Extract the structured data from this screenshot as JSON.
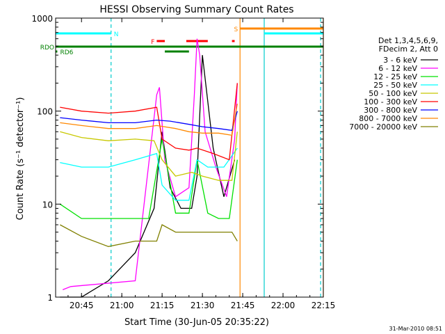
{
  "chart_data": {
    "type": "line",
    "title": "HESSI Observing Summary Count Rates",
    "xlabel": "Start Time (30-Jun-05 20:35:22)",
    "ylabel": "Count Rate (s⁻¹ detector⁻¹)",
    "y_scale": "log",
    "ylim": [
      1,
      1000
    ],
    "xlim": [
      "20:35:22",
      "22:15:00"
    ],
    "x_ticks": [
      "20:45",
      "21:00",
      "21:15",
      "21:30",
      "21:45",
      "22:00",
      "22:15"
    ],
    "y_ticks": [
      "1",
      "10",
      "100",
      "1000"
    ],
    "legend_header": [
      "Det 1,3,4,5,6,9,",
      "FDecim 2, Att 0"
    ],
    "legend_position": "right",
    "series": [
      {
        "name": "3 - 6 keV",
        "color": "#000000",
        "x": [
          "20:37",
          "20:45",
          "20:55",
          "21:05",
          "21:12",
          "21:15",
          "21:18",
          "21:22",
          "21:26",
          "21:28",
          "21:30",
          "21:34",
          "21:38",
          "21:42"
        ],
        "y": [
          1,
          1,
          1.5,
          3,
          9,
          60,
          15,
          9,
          9,
          20,
          400,
          40,
          12,
          30
        ]
      },
      {
        "name": "6 - 12 keV",
        "color": "#ff00ff",
        "x": [
          "20:38",
          "20:41",
          "21:05",
          "21:13",
          "21:14",
          "21:16",
          "21:20",
          "21:25",
          "21:27",
          "21:28",
          "21:29",
          "21:31",
          "21:35",
          "21:39",
          "21:42",
          "21:43"
        ],
        "y": [
          1.2,
          1.3,
          1.5,
          150,
          180,
          30,
          12,
          15,
          150,
          600,
          400,
          60,
          25,
          12,
          50,
          200
        ]
      },
      {
        "name": "12 - 25 keV",
        "color": "#00e000",
        "x": [
          "20:37",
          "20:45",
          "21:00",
          "21:10",
          "21:15",
          "21:20",
          "21:25",
          "21:28",
          "21:32",
          "21:36",
          "21:40",
          "21:43"
        ],
        "y": [
          10,
          7,
          7,
          7,
          50,
          8,
          8,
          30,
          8,
          7,
          7,
          30
        ]
      },
      {
        "name": "25 - 50 keV",
        "color": "#00ffff",
        "x": [
          "20:37",
          "20:45",
          "20:55",
          "21:05",
          "21:13",
          "21:15",
          "21:20",
          "21:25",
          "21:28",
          "21:32",
          "21:38",
          "21:43"
        ],
        "y": [
          28,
          25,
          25,
          30,
          35,
          16,
          11,
          11,
          30,
          25,
          25,
          40
        ]
      },
      {
        "name": "50 - 100 keV",
        "color": "#c8c800",
        "x": [
          "20:37",
          "20:45",
          "20:55",
          "21:05",
          "21:12",
          "21:15",
          "21:20",
          "21:26",
          "21:30",
          "21:36",
          "21:41",
          "21:43"
        ],
        "y": [
          60,
          52,
          48,
          50,
          48,
          30,
          20,
          22,
          20,
          18,
          18,
          60
        ]
      },
      {
        "name": "100 - 300 keV",
        "color": "#ff0000",
        "x": [
          "20:37",
          "20:45",
          "20:55",
          "21:05",
          "21:13",
          "21:15",
          "21:20",
          "21:25",
          "21:28",
          "21:34",
          "21:40",
          "21:43"
        ],
        "y": [
          110,
          100,
          95,
          100,
          110,
          50,
          40,
          38,
          40,
          35,
          30,
          200
        ]
      },
      {
        "name": "300 - 800 keV",
        "color": "#0000ff",
        "x": [
          "20:37",
          "20:45",
          "20:55",
          "21:05",
          "21:13",
          "21:18",
          "21:25",
          "21:30",
          "21:36",
          "21:41",
          "21:43"
        ],
        "y": [
          85,
          80,
          75,
          75,
          80,
          78,
          72,
          68,
          65,
          62,
          100
        ]
      },
      {
        "name": "800 - 7000 keV",
        "color": "#ff8800",
        "x": [
          "20:37",
          "20:45",
          "20:55",
          "21:05",
          "21:13",
          "21:20",
          "21:25",
          "21:30",
          "21:36",
          "21:41",
          "21:43"
        ],
        "y": [
          75,
          70,
          65,
          65,
          70,
          65,
          60,
          58,
          58,
          55,
          120
        ]
      },
      {
        "name": "7000 - 20000 keV",
        "color": "#808000",
        "x": [
          "20:37",
          "20:45",
          "20:55",
          "21:05",
          "21:13",
          "21:15",
          "21:20",
          "21:25",
          "21:30",
          "21:36",
          "21:41",
          "21:43"
        ],
        "y": [
          6,
          4.5,
          3.5,
          4,
          4,
          6,
          5,
          5,
          5,
          5,
          5,
          4
        ]
      }
    ],
    "vertical_lines": [
      {
        "x": "20:56",
        "color": "#00cccc",
        "style": "dashed"
      },
      {
        "x": "21:44",
        "color": "#ff8800",
        "style": "solid"
      },
      {
        "x": "21:53",
        "color": "#00cccc",
        "style": "solid"
      },
      {
        "x": "22:14",
        "color": "#00cccc",
        "style": "dashed"
      },
      {
        "x": "22:15",
        "color": "#ff8800",
        "style": "solid"
      }
    ],
    "flag_bars": [
      {
        "label": "N",
        "color": "#00ffff",
        "segments": [
          [
            "20:35:22",
            "20:56"
          ],
          [
            "21:53",
            "22:15"
          ]
        ]
      },
      {
        "label": "S",
        "color": "#ff8800",
        "segments": [
          [
            "21:44",
            "22:15"
          ]
        ]
      },
      {
        "label": "F",
        "color": "#ff0000",
        "segments": [
          [
            "21:13",
            "21:16"
          ],
          [
            "21:24",
            "21:32"
          ],
          [
            "21:41",
            "21:42"
          ]
        ]
      },
      {
        "label": "RDO",
        "color": "#008000",
        "segments": [
          [
            "20:35:22",
            "22:15"
          ]
        ]
      },
      {
        "label": "RD6",
        "color": "#008000",
        "segments": [
          [
            "20:35:22",
            "20:36"
          ],
          [
            "21:16",
            "21:25"
          ]
        ]
      }
    ]
  },
  "footer": {
    "date_stamp": "31-Mar-2010 08:51"
  }
}
